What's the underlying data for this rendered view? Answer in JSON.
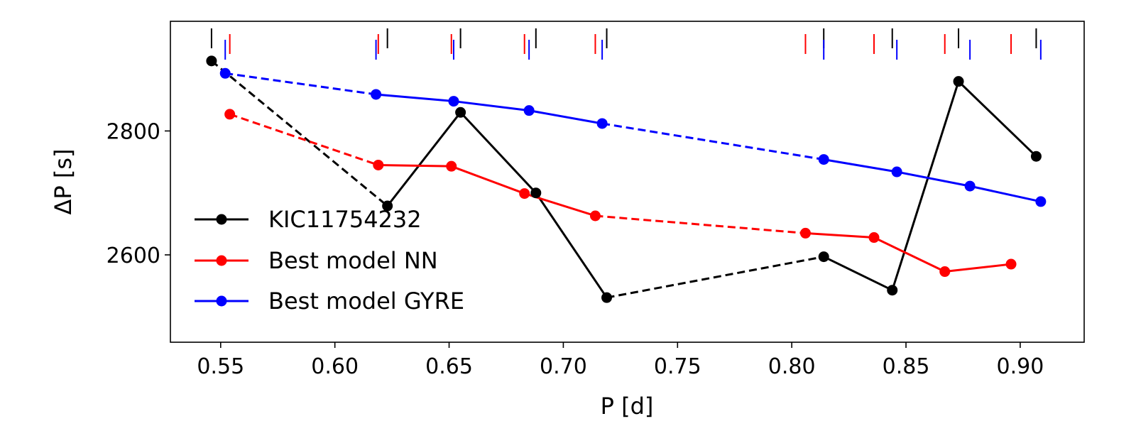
{
  "chart_data": {
    "type": "line",
    "xlabel": "P [d]",
    "ylabel": "ΔP [s]",
    "xlim": [
      0.528,
      0.928
    ],
    "ylim": [
      2459,
      2977
    ],
    "xticks": [
      0.55,
      0.6,
      0.65,
      0.7,
      0.75,
      0.8,
      0.85,
      0.9
    ],
    "xtick_labels": [
      "0.55",
      "0.60",
      "0.65",
      "0.70",
      "0.75",
      "0.80",
      "0.85",
      "0.90"
    ],
    "yticks": [
      2600,
      2800
    ],
    "ytick_labels": [
      "2600",
      "2800"
    ],
    "grid": false,
    "legend_position": "lower-left",
    "series": [
      {
        "name": "KIC11754232",
        "color": "#000000",
        "x": [
          0.546,
          0.623,
          0.655,
          0.688,
          0.719,
          0.814,
          0.844,
          0.873,
          0.907
        ],
        "y": [
          2913,
          2679,
          2830,
          2700,
          2531,
          2597,
          2543,
          2880,
          2759
        ],
        "dashed_segments": [
          0,
          4
        ],
        "period_marks": [
          0.546,
          0.623,
          0.655,
          0.688,
          0.719,
          0.814,
          0.844,
          0.873,
          0.907
        ]
      },
      {
        "name": "Best model NN",
        "color": "#ff0000",
        "x": [
          0.554,
          0.619,
          0.651,
          0.683,
          0.714,
          0.806,
          0.836,
          0.867,
          0.896
        ],
        "y": [
          2827,
          2745,
          2743,
          2699,
          2663,
          2635,
          2628,
          2573,
          2585
        ],
        "dashed_segments": [
          0,
          4
        ],
        "period_marks": [
          0.554,
          0.619,
          0.651,
          0.683,
          0.714,
          0.806,
          0.836,
          0.867,
          0.896
        ]
      },
      {
        "name": "Best model GYRE",
        "color": "#0000ff",
        "x": [
          0.552,
          0.618,
          0.652,
          0.685,
          0.717,
          0.814,
          0.846,
          0.878,
          0.909
        ],
        "y": [
          2893,
          2859,
          2848,
          2833,
          2812,
          2754,
          2734,
          2711,
          2686
        ],
        "dashed_segments": [
          0,
          4
        ],
        "period_marks": [
          0.552,
          0.618,
          0.652,
          0.685,
          0.717,
          0.814,
          0.846,
          0.878,
          0.909
        ]
      }
    ]
  }
}
